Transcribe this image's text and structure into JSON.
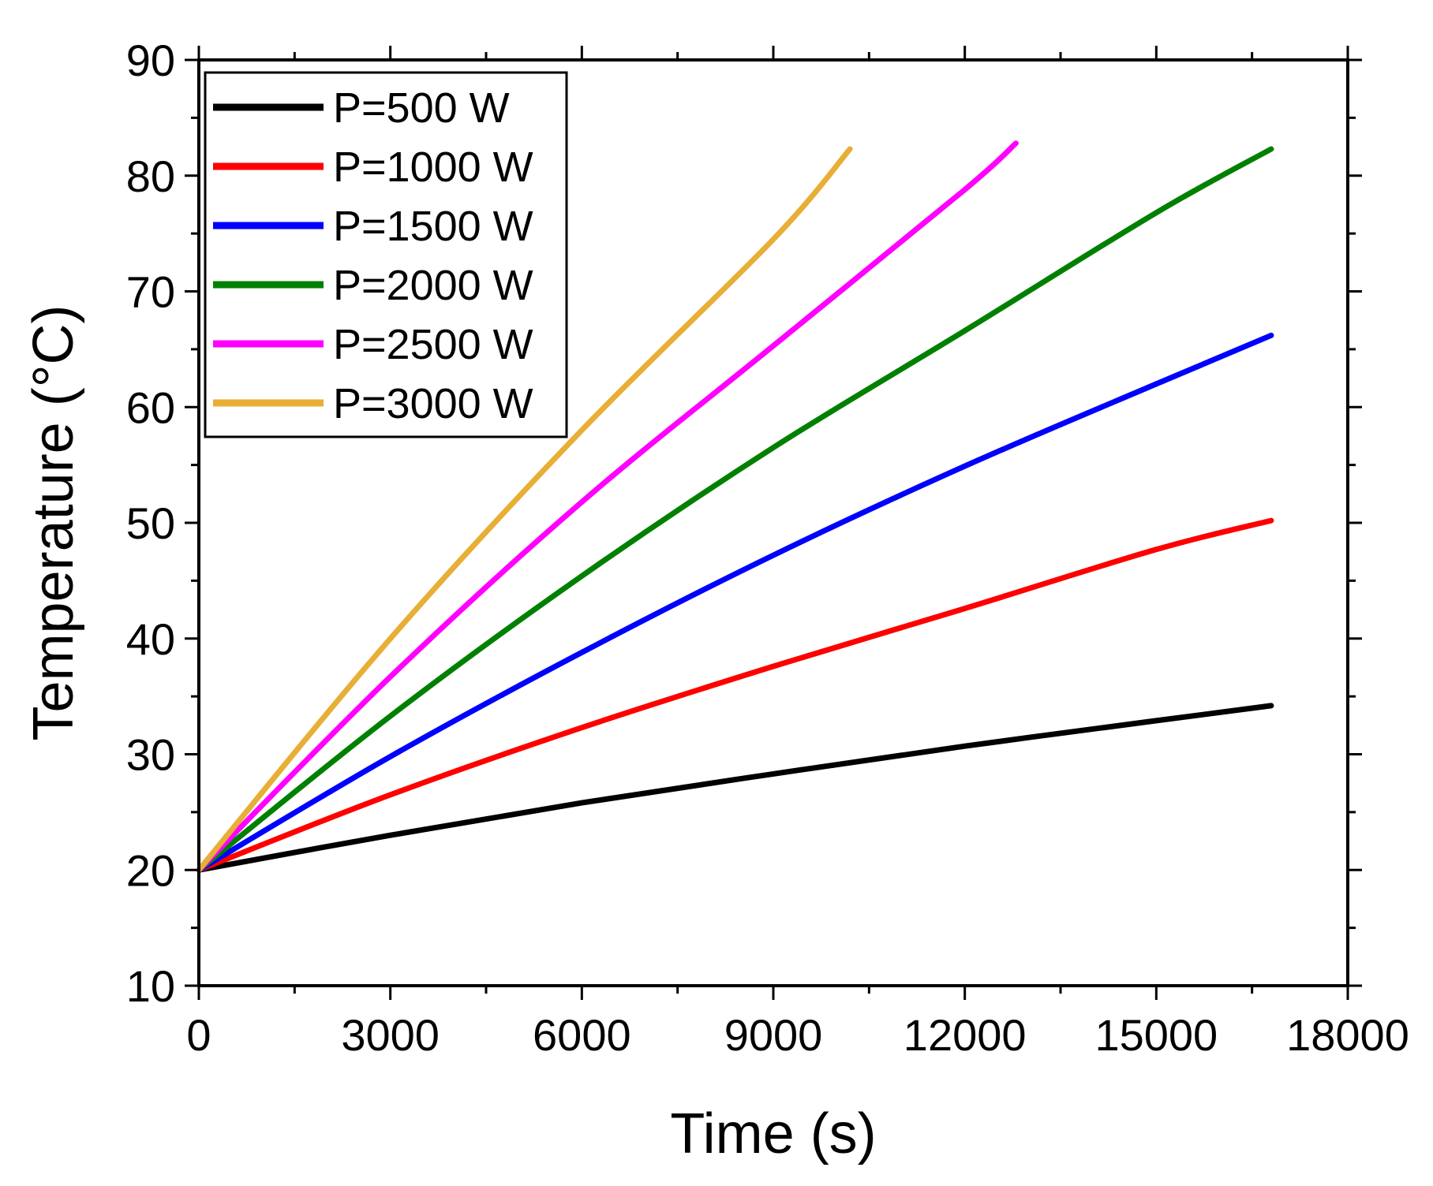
{
  "chart_data": {
    "type": "line",
    "title": "",
    "xlabel": "Time (s)",
    "ylabel": "Temperature (°C)",
    "xlim": [
      0,
      18000
    ],
    "ylim": [
      10,
      90
    ],
    "xticks": [
      0,
      3000,
      6000,
      9000,
      12000,
      15000,
      18000
    ],
    "xtick_labels": [
      "0",
      "3000",
      "6000",
      "9000",
      "12000",
      "15000",
      "18000"
    ],
    "yticks": [
      10,
      20,
      30,
      40,
      50,
      60,
      70,
      80,
      90
    ],
    "ytick_labels": [
      "10",
      "20",
      "30",
      "40",
      "50",
      "60",
      "70",
      "80",
      "90"
    ],
    "grid": false,
    "legend_position": "top-left",
    "series": [
      {
        "name": "P=500 W",
        "color": "#000000",
        "x": [
          0,
          3000,
          6000,
          9000,
          12000,
          15000,
          16800
        ],
        "y": [
          20,
          23.0,
          25.8,
          28.3,
          30.7,
          32.9,
          34.2
        ]
      },
      {
        "name": "P=1000 W",
        "color": "#ff0000",
        "x": [
          0,
          3000,
          6000,
          9000,
          12000,
          15000,
          16800
        ],
        "y": [
          20,
          26.5,
          32.3,
          37.6,
          42.6,
          47.7,
          50.2
        ]
      },
      {
        "name": "P=1500 W",
        "color": "#0000ff",
        "x": [
          0,
          3000,
          6000,
          9000,
          12000,
          15000,
          16800
        ],
        "y": [
          20,
          29.8,
          38.8,
          47.2,
          54.9,
          62.0,
          66.2
        ]
      },
      {
        "name": "P=2000 W",
        "color": "#008000",
        "x": [
          0,
          3000,
          6000,
          9000,
          12000,
          15000,
          16800
        ],
        "y": [
          20,
          33.3,
          45.4,
          56.5,
          66.6,
          76.8,
          82.3
        ]
      },
      {
        "name": "P=2500 W",
        "color": "#ff00ff",
        "x": [
          0,
          3000,
          6000,
          9000,
          12000,
          12800
        ],
        "y": [
          20,
          36.7,
          51.8,
          65.3,
          78.8,
          82.8
        ]
      },
      {
        "name": "P=3000 W",
        "color": "#e8ae35",
        "x": [
          0,
          3000,
          6000,
          9000,
          10200
        ],
        "y": [
          20,
          40.0,
          58.0,
          74.5,
          82.3
        ]
      }
    ]
  }
}
